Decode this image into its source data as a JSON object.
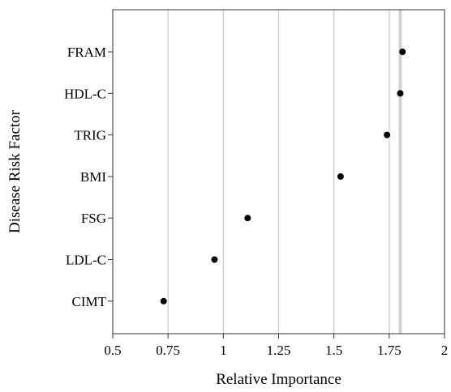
{
  "chart_data": {
    "type": "scatter",
    "xlabel": "Relative Importance",
    "ylabel": "Disease Risk Factor",
    "xlim": [
      0.5,
      2
    ],
    "xticks": [
      "0.5",
      "0.75",
      "1",
      "1.25",
      "1.5",
      "1.75",
      "2"
    ],
    "grid": "vertical",
    "reference_line_x": 1.8,
    "categories": [
      "FRAM",
      "HDL-C",
      "TRIG",
      "BMI",
      "FSG",
      "LDL-C",
      "CIMT"
    ],
    "values": [
      1.81,
      1.8,
      1.74,
      1.53,
      1.11,
      0.96,
      0.73
    ]
  },
  "colors": {
    "point": "#000000",
    "grid": "#c8c8c8",
    "refline": "#d0d0d0",
    "axis": "#333333"
  }
}
